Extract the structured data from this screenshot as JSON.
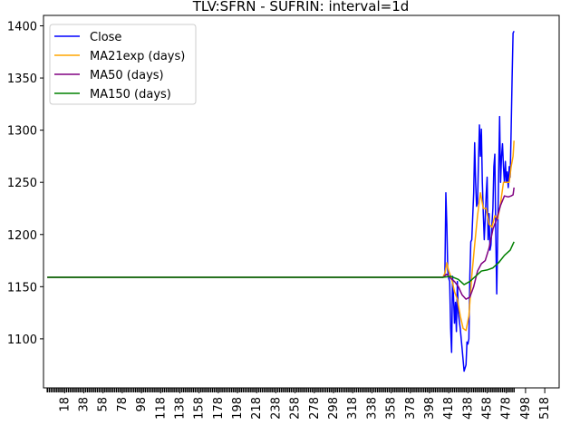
{
  "chart_data": {
    "type": "line",
    "title": "TLV:SFRN - SUFRIN: interval=1d",
    "xlabel": "",
    "ylabel": "",
    "xlim": [
      -4,
      533
    ],
    "ylim": [
      1053,
      1410
    ],
    "x_ticks": [
      18,
      38,
      58,
      78,
      98,
      118,
      138,
      158,
      178,
      198,
      218,
      238,
      258,
      278,
      298,
      318,
      338,
      358,
      378,
      398,
      418,
      438,
      458,
      478,
      498,
      518
    ],
    "y_ticks": [
      1100,
      1150,
      1200,
      1250,
      1300,
      1350,
      1400
    ],
    "grid": false,
    "legend_position": "top-left",
    "series": [
      {
        "name": "Close",
        "color": "#0000ff",
        "points": [
          [
            0,
            1159
          ],
          [
            412,
            1159
          ],
          [
            414,
            1162
          ],
          [
            415,
            1240
          ],
          [
            416,
            1210
          ],
          [
            417,
            1165
          ],
          [
            418,
            1158
          ],
          [
            419,
            1155
          ],
          [
            420,
            1110
          ],
          [
            421,
            1087
          ],
          [
            422,
            1160
          ],
          [
            423,
            1140
          ],
          [
            424,
            1115
          ],
          [
            425,
            1135
          ],
          [
            426,
            1107
          ],
          [
            427,
            1155
          ],
          [
            428,
            1125
          ],
          [
            430,
            1110
          ],
          [
            432,
            1090
          ],
          [
            434,
            1069
          ],
          [
            436,
            1075
          ],
          [
            437,
            1097
          ],
          [
            438,
            1095
          ],
          [
            439,
            1100
          ],
          [
            440,
            1160
          ],
          [
            441,
            1193
          ],
          [
            442,
            1195
          ],
          [
            444,
            1240
          ],
          [
            445,
            1288
          ],
          [
            446,
            1250
          ],
          [
            447,
            1227
          ],
          [
            448,
            1230
          ],
          [
            449,
            1270
          ],
          [
            450,
            1305
          ],
          [
            451,
            1275
          ],
          [
            452,
            1301
          ],
          [
            453,
            1250
          ],
          [
            454,
            1220
          ],
          [
            455,
            1195
          ],
          [
            456,
            1215
          ],
          [
            457,
            1238
          ],
          [
            458,
            1255
          ],
          [
            459,
            1195
          ],
          [
            460,
            1220
          ],
          [
            461,
            1185
          ],
          [
            462,
            1190
          ],
          [
            463,
            1210
          ],
          [
            464,
            1225
          ],
          [
            465,
            1265
          ],
          [
            466,
            1277
          ],
          [
            467,
            1200
          ],
          [
            468,
            1143
          ],
          [
            469,
            1200
          ],
          [
            470,
            1260
          ],
          [
            471,
            1313
          ],
          [
            472,
            1250
          ],
          [
            473,
            1275
          ],
          [
            474,
            1287
          ],
          [
            475,
            1265
          ],
          [
            476,
            1250
          ],
          [
            477,
            1270
          ],
          [
            478,
            1250
          ],
          [
            479,
            1260
          ],
          [
            480,
            1245
          ],
          [
            481,
            1265
          ],
          [
            482,
            1255
          ],
          [
            483,
            1300
          ],
          [
            484,
            1350
          ],
          [
            485,
            1393
          ],
          [
            486,
            1395
          ]
        ]
      },
      {
        "name": "MA21exp (days)",
        "color": "#ffa500",
        "points": [
          [
            0,
            1159
          ],
          [
            412,
            1159
          ],
          [
            414,
            1163
          ],
          [
            416,
            1173
          ],
          [
            418,
            1165
          ],
          [
            421,
            1158
          ],
          [
            424,
            1145
          ],
          [
            427,
            1138
          ],
          [
            430,
            1122
          ],
          [
            433,
            1110
          ],
          [
            436,
            1108
          ],
          [
            439,
            1122
          ],
          [
            442,
            1160
          ],
          [
            445,
            1190
          ],
          [
            448,
            1218
          ],
          [
            451,
            1240
          ],
          [
            454,
            1225
          ],
          [
            457,
            1225
          ],
          [
            460,
            1210
          ],
          [
            463,
            1207
          ],
          [
            466,
            1218
          ],
          [
            469,
            1215
          ],
          [
            472,
            1230
          ],
          [
            475,
            1250
          ],
          [
            478,
            1250
          ],
          [
            481,
            1250
          ],
          [
            483,
            1265
          ],
          [
            485,
            1275
          ],
          [
            486,
            1290
          ]
        ]
      },
      {
        "name": "MA50 (days)",
        "color": "#800080",
        "points": [
          [
            0,
            1159
          ],
          [
            412,
            1159
          ],
          [
            416,
            1162
          ],
          [
            420,
            1158
          ],
          [
            424,
            1155
          ],
          [
            428,
            1150
          ],
          [
            432,
            1142
          ],
          [
            436,
            1138
          ],
          [
            440,
            1140
          ],
          [
            444,
            1150
          ],
          [
            448,
            1165
          ],
          [
            452,
            1172
          ],
          [
            456,
            1175
          ],
          [
            460,
            1187
          ],
          [
            464,
            1205
          ],
          [
            468,
            1215
          ],
          [
            472,
            1228
          ],
          [
            476,
            1237
          ],
          [
            480,
            1236
          ],
          [
            483,
            1237
          ],
          [
            485,
            1238
          ],
          [
            486,
            1245
          ]
        ]
      },
      {
        "name": "MA150 (days)",
        "color": "#008000",
        "points": [
          [
            0,
            1159
          ],
          [
            412,
            1159
          ],
          [
            420,
            1160
          ],
          [
            428,
            1157
          ],
          [
            434,
            1152
          ],
          [
            440,
            1155
          ],
          [
            446,
            1160
          ],
          [
            452,
            1165
          ],
          [
            458,
            1166
          ],
          [
            464,
            1168
          ],
          [
            470,
            1173
          ],
          [
            476,
            1180
          ],
          [
            482,
            1185
          ],
          [
            486,
            1193
          ]
        ]
      }
    ]
  }
}
